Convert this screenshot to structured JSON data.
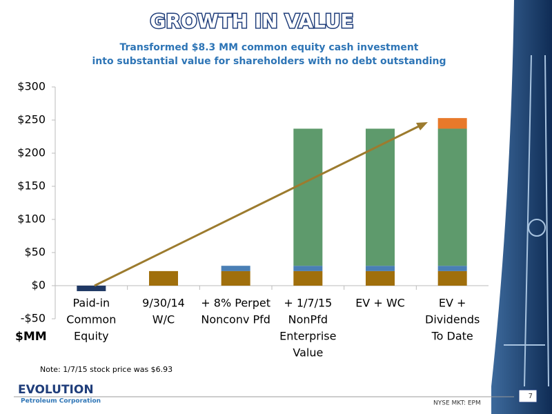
{
  "slide": {
    "logo": "EVOLUTION",
    "logo_sub": "Petroleum Corporation",
    "exchange": "NYSE MKT: EPM",
    "page": "7",
    "note": "Note: 1/7/15 stock price was $6.93"
  },
  "chart_data": {
    "type": "bar",
    "stacked": true,
    "title": "GROWTH IN VALUE",
    "subtitle": [
      "Transformed $8.3 MM common equity cash investment",
      "into substantial value for shareholders with no debt outstanding"
    ],
    "y_label": "$MM",
    "categories": [
      [
        "Paid-in",
        "Common",
        "Equity"
      ],
      [
        "9/30/14",
        "W/C"
      ],
      [
        "+ 8% Perpet",
        "Nonconv Pfd"
      ],
      [
        "+ 1/7/15",
        "NonPfd",
        "Enterprise",
        "Value"
      ],
      [
        "EV + WC"
      ],
      [
        "EV +",
        "Dividends",
        "To Date"
      ]
    ],
    "series": [
      {
        "color": "#1f3864",
        "values": [
          -8.3,
          null,
          null,
          null,
          null,
          null
        ]
      },
      {
        "color": "#a06f0c",
        "values": [
          null,
          22,
          22,
          22,
          22,
          22
        ]
      },
      {
        "color": "#4a7fb5",
        "values": [
          null,
          null,
          8,
          8,
          8,
          8
        ]
      },
      {
        "color": "#5e9a6c",
        "values": [
          null,
          null,
          null,
          207,
          207,
          207
        ]
      },
      {
        "color": "#e8792a",
        "values": [
          null,
          null,
          null,
          null,
          null,
          16
        ]
      }
    ],
    "ylim": [
      -50,
      300
    ],
    "yticks": [
      {
        "value": -50,
        "label": "-$50"
      },
      {
        "value": 0,
        "label": "$0"
      },
      {
        "value": 50,
        "label": "$50"
      },
      {
        "value": 100,
        "label": "$100"
      },
      {
        "value": 150,
        "label": "$150"
      },
      {
        "value": 200,
        "label": "$200"
      },
      {
        "value": 250,
        "label": "$250"
      },
      {
        "value": 300,
        "label": "$300"
      }
    ]
  }
}
